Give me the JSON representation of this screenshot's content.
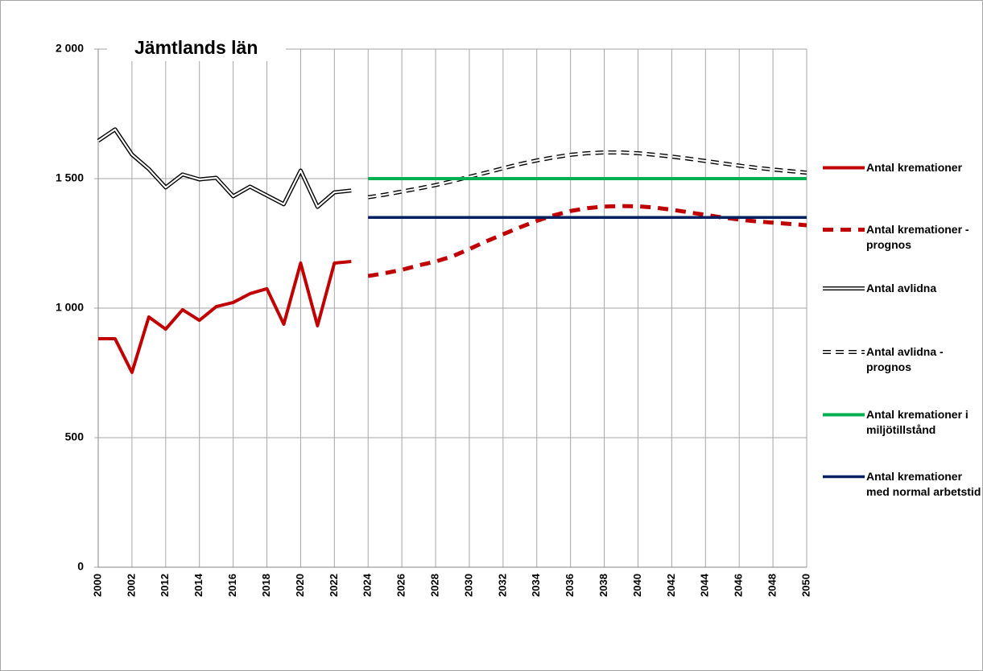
{
  "chart_data": {
    "type": "line",
    "title": "Jämtlands län",
    "categories": [
      "2000",
      null,
      "2002",
      null,
      "2012",
      null,
      "2014",
      null,
      "2016",
      null,
      "2018",
      null,
      "2020",
      null,
      "2022",
      null,
      "2024",
      null,
      "2026",
      null,
      "2028",
      null,
      "2030",
      null,
      "2032",
      null,
      "2034",
      null,
      "2036",
      null,
      "2038",
      null,
      "2040",
      null,
      "2042",
      null,
      "2044",
      null,
      "2046",
      null,
      "2048",
      null,
      "2050"
    ],
    "ylim": [
      0,
      2000
    ],
    "yticks": [
      0,
      500,
      {
        "value": 1000,
        "label": "1 000"
      },
      {
        "value": 1500,
        "label": "1 500"
      },
      {
        "value": 2000,
        "label": "2 000"
      }
    ],
    "grid": true,
    "legend": "right",
    "series": [
      {
        "name": "Antal kremationer",
        "color": "#c00000",
        "style": "solid",
        "values": [
          882,
          882,
          752,
          966,
          919,
          994,
          953,
          1006,
          1022,
          1056,
          1075,
          938,
          1174,
          932,
          1174,
          1180,
          null,
          null,
          null,
          null,
          null,
          null,
          null,
          null,
          null,
          null,
          null,
          null,
          null,
          null,
          null,
          null,
          null,
          null,
          null,
          null,
          null,
          null,
          null,
          null,
          null,
          null,
          null
        ]
      },
      {
        "name": "Antal kremationer - prognos",
        "color": "#c00000",
        "style": "dashed",
        "values": [
          null,
          null,
          null,
          null,
          null,
          null,
          null,
          null,
          null,
          null,
          null,
          null,
          null,
          null,
          null,
          null,
          1124,
          1135,
          1148,
          1165,
          1180,
          1200,
          1228,
          1258,
          1285,
          1312,
          1337,
          1358,
          1375,
          1386,
          1392,
          1394,
          1393,
          1388,
          1380,
          1370,
          1360,
          1350,
          1342,
          1335,
          1330,
          1325,
          1320
        ]
      },
      {
        "name": "Antal avlidna",
        "color": "#000000",
        "style": "double",
        "values": [
          1646,
          1690,
          1593,
          1537,
          1466,
          1516,
          1497,
          1503,
          1432,
          1469,
          1435,
          1401,
          1531,
          1391,
          1447,
          1454,
          null,
          null,
          null,
          null,
          null,
          null,
          null,
          null,
          null,
          null,
          null,
          null,
          null,
          null,
          null,
          null,
          null,
          null,
          null,
          null,
          null,
          null,
          null,
          null,
          null,
          null,
          null
        ]
      },
      {
        "name": "Antal avlidna - prognos",
        "color": "#000000",
        "style": "double-dashed",
        "values": [
          null,
          null,
          null,
          null,
          null,
          null,
          null,
          null,
          null,
          null,
          null,
          null,
          null,
          null,
          null,
          null,
          1428,
          1438,
          1450,
          1462,
          1475,
          1490,
          1507,
          1523,
          1540,
          1556,
          1570,
          1582,
          1592,
          1598,
          1601,
          1601,
          1598,
          1592,
          1585,
          1577,
          1568,
          1559,
          1550,
          1542,
          1535,
          1529,
          1523
        ]
      },
      {
        "name": "Antal kremationer i miljötillstånd",
        "color": "#00b050",
        "style": "solid",
        "values": [
          null,
          null,
          null,
          null,
          null,
          null,
          null,
          null,
          null,
          null,
          null,
          null,
          null,
          null,
          null,
          null,
          1500,
          1500,
          1500,
          1500,
          1500,
          1500,
          1500,
          1500,
          1500,
          1500,
          1500,
          1500,
          1500,
          1500,
          1500,
          1500,
          1500,
          1500,
          1500,
          1500,
          1500,
          1500,
          1500,
          1500,
          1500,
          1500,
          1500
        ]
      },
      {
        "name": "Antal kremationer med normal arbetstid",
        "color": "#002060",
        "style": "solid",
        "values": [
          null,
          null,
          null,
          null,
          null,
          null,
          null,
          null,
          null,
          null,
          null,
          null,
          null,
          null,
          null,
          null,
          1350,
          1350,
          1350,
          1350,
          1350,
          1350,
          1350,
          1350,
          1350,
          1350,
          1350,
          1350,
          1350,
          1350,
          1350,
          1350,
          1350,
          1350,
          1350,
          1350,
          1350,
          1350,
          1350,
          1350,
          1350,
          1350,
          1350
        ]
      }
    ]
  }
}
